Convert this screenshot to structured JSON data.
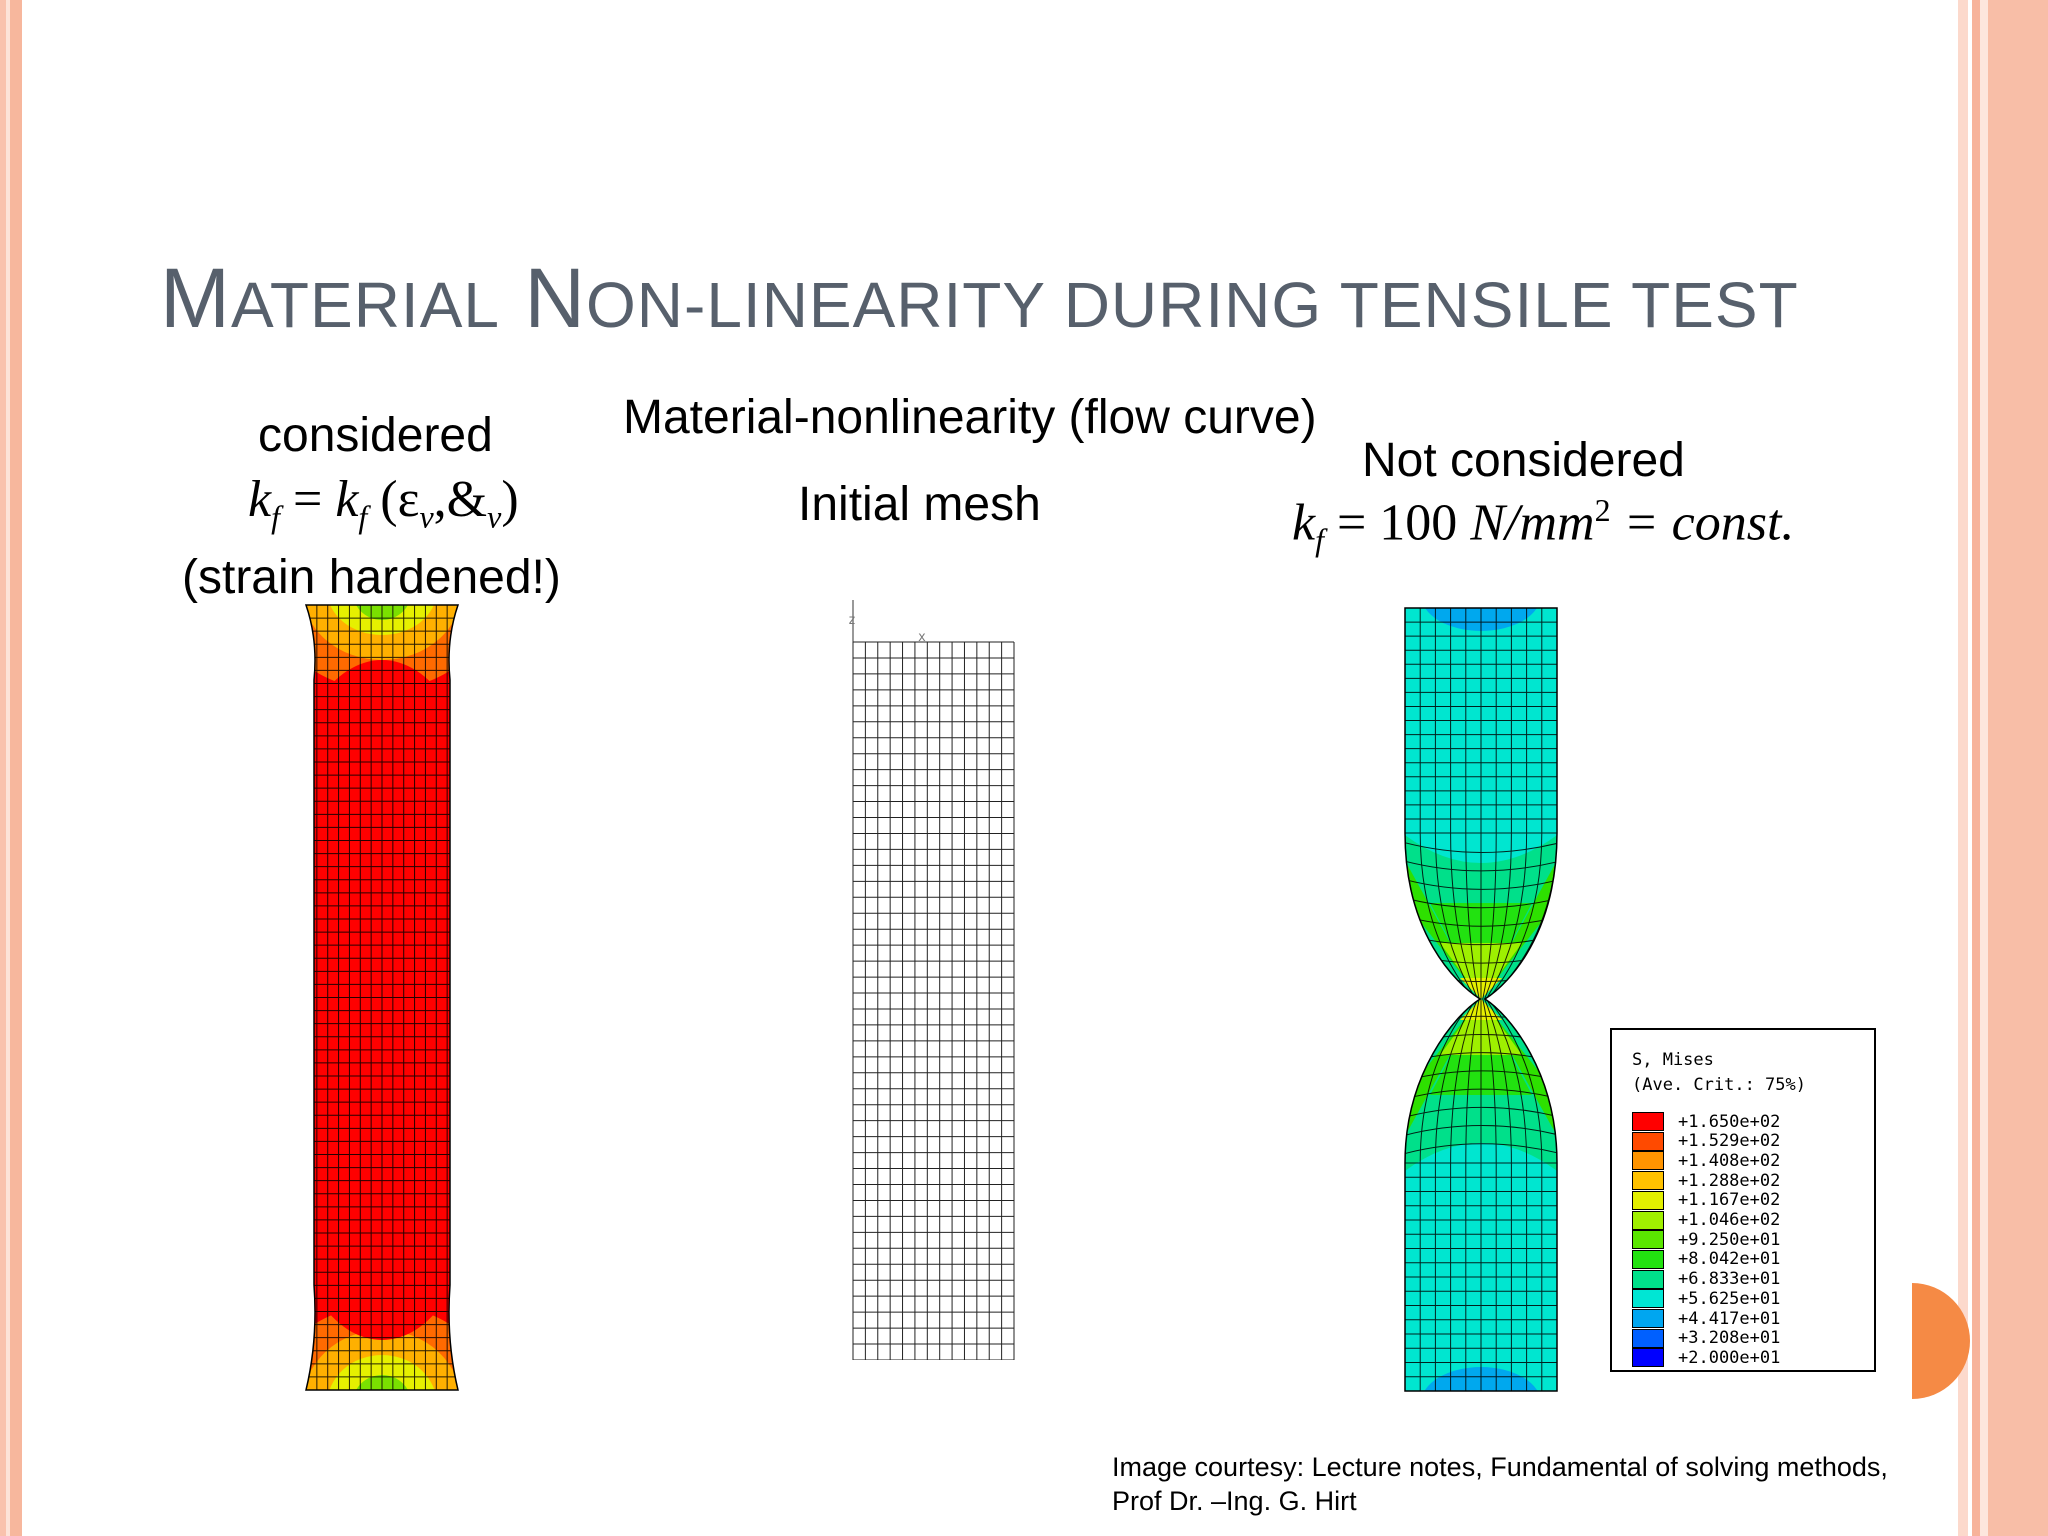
{
  "title": {
    "first": "M",
    "first_rest": "ATERIAL",
    "second": "N",
    "second_rest": "ON-LINEARITY DURING TENSILE TEST"
  },
  "headings": {
    "center_top": "Material-nonlinearity (flow curve)",
    "center_mesh": "Initial mesh",
    "left": "considered",
    "left_note": "(strain hardened!)",
    "right": "Not considered"
  },
  "formulas": {
    "left": {
      "lhs": "k",
      "lhs_sub": "f",
      "eq": " = ",
      "rhs": "k",
      "rhs_sub": "f",
      "args": " (ε",
      "arg_sub1": "v",
      "mid": ",&",
      "arg_sub2": "v",
      "close": ")"
    },
    "right": {
      "lhs": "k",
      "lhs_sub": "f",
      "eq": " = 100 ",
      "unit": "N/mm",
      "exp": "2",
      "rest": " = const."
    }
  },
  "mesh_axes": {
    "z": "z",
    "x": "x"
  },
  "legend": {
    "title": "S, Mises",
    "subtitle": "(Ave. Crit.: 75%)",
    "entries": [
      {
        "value": "+1.650e+02",
        "color": "#ff0000"
      },
      {
        "value": "+1.529e+02",
        "color": "#ff4a00"
      },
      {
        "value": "+1.408e+02",
        "color": "#ff9400"
      },
      {
        "value": "+1.288e+02",
        "color": "#ffc200"
      },
      {
        "value": "+1.167e+02",
        "color": "#e3f000"
      },
      {
        "value": "+1.046e+02",
        "color": "#a0f000"
      },
      {
        "value": "+9.250e+01",
        "color": "#5ae600"
      },
      {
        "value": "+8.042e+01",
        "color": "#22e210"
      },
      {
        "value": "+6.833e+01",
        "color": "#00e08a"
      },
      {
        "value": "+5.625e+01",
        "color": "#00e6d4"
      },
      {
        "value": "+4.417e+01",
        "color": "#00a6f0"
      },
      {
        "value": "+3.208e+01",
        "color": "#0060ff"
      },
      {
        "value": "+2.000e+01",
        "color": "#0000ff"
      }
    ]
  },
  "credit": {
    "line1": "Image courtesy: Lecture notes, Fundamental of solving methods,",
    "line2": "Prof Dr. –Ing. G. Hirt"
  }
}
